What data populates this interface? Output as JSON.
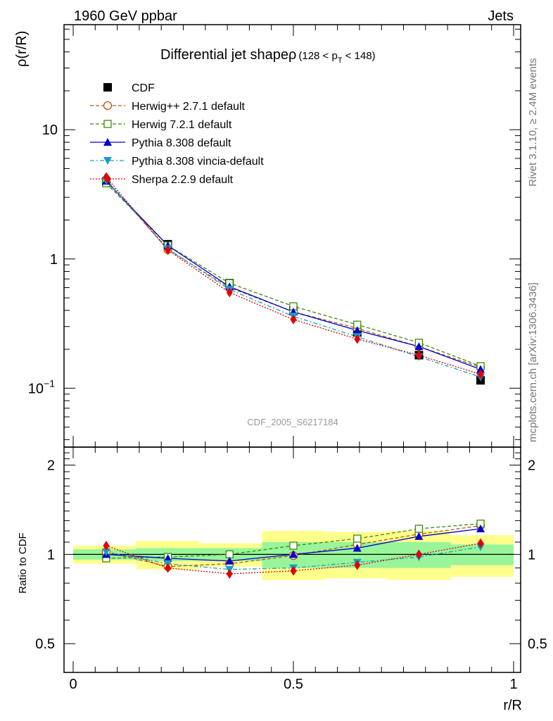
{
  "header": {
    "left": "1960 GeV ppbar",
    "right": "Jets",
    "side_rivet": "Rivet 3.1.10, ≥ 2.4M events",
    "side_mcplots": "mcplots.cern.ch [arXiv:1306.3436]",
    "watermark": "CDF_2005_S6217184"
  },
  "chart_data": [
    {
      "type": "line",
      "scale": "log",
      "title_main": "Differential jet shape",
      "title_rho": "ρ",
      "title_range": {
        "open": "(128 < p",
        "sub": "T",
        "close": " < 148)"
      },
      "ylabel": "ρ(r/R)",
      "xlabel": "r/R",
      "xlim": [
        0,
        1
      ],
      "ylim": [
        0.035,
        65
      ],
      "x_ticks": [
        "0",
        "0.5",
        "1"
      ],
      "y_ticks": [
        {
          "value": 10,
          "label": "10"
        },
        {
          "value": 1,
          "label": "1"
        },
        {
          "value": 0.1,
          "label": "10",
          "sup": "−1"
        }
      ],
      "x": [
        0.075,
        0.215,
        0.355,
        0.5,
        0.645,
        0.785,
        0.925
      ],
      "series": [
        {
          "name": "CDF",
          "color": "#000000",
          "marker": "square",
          "dash": "",
          "values": [
            4.0,
            1.3,
            0.65,
            0.4,
            0.27,
            0.18,
            0.115
          ]
        },
        {
          "name": "Herwig++ 2.7.1 default",
          "color": "#b8560b",
          "marker": "circle-open",
          "dash": "5,3",
          "values": [
            4.1,
            1.18,
            0.6,
            0.39,
            0.29,
            0.21,
            0.145
          ]
        },
        {
          "name": "Herwig 7.2.1 default",
          "color": "#3a8a0c",
          "marker": "square-open",
          "dash": "5,3",
          "values": [
            3.85,
            1.27,
            0.65,
            0.43,
            0.31,
            0.225,
            0.148
          ]
        },
        {
          "name": "Pythia 8.308 default",
          "color": "#0000cc",
          "marker": "triangle-up",
          "dash": "",
          "values": [
            4.0,
            1.27,
            0.61,
            0.39,
            0.28,
            0.21,
            0.14
          ]
        },
        {
          "name": "Pythia 8.308 vincia-default",
          "color": "#1a9fc4",
          "marker": "triangle-down",
          "dash": "6,3,2,3",
          "values": [
            4.05,
            1.2,
            0.58,
            0.36,
            0.25,
            0.175,
            0.122
          ]
        },
        {
          "name": "Sherpa 2.2.9 default",
          "color": "#e00000",
          "marker": "diamond",
          "dash": "2,2",
          "values": [
            4.3,
            1.17,
            0.55,
            0.34,
            0.24,
            0.18,
            0.128
          ]
        }
      ]
    },
    {
      "type": "line",
      "scale": "log",
      "ylabel": "Ratio to CDF",
      "xlabel": "r/R",
      "xlim": [
        0,
        1
      ],
      "ylim": [
        0.4,
        2.3
      ],
      "y_ticks": [
        {
          "value": 2,
          "label": "2"
        },
        {
          "value": 1,
          "label": "1"
        },
        {
          "value": 0.5,
          "label": "0.5"
        }
      ],
      "x_ticks": [
        "0",
        "0.5",
        "1"
      ],
      "bands": [
        {
          "x0": 0.0,
          "x1": 0.143,
          "y1_lo": 0.96,
          "y1_hi": 1.04,
          "y2_lo": 0.93,
          "y2_hi": 1.07
        },
        {
          "x0": 0.143,
          "x1": 0.286,
          "y1_lo": 0.95,
          "y1_hi": 1.05,
          "y2_lo": 0.89,
          "y2_hi": 1.11
        },
        {
          "x0": 0.286,
          "x1": 0.429,
          "y1_lo": 0.95,
          "y1_hi": 1.05,
          "y2_lo": 0.91,
          "y2_hi": 1.09
        },
        {
          "x0": 0.429,
          "x1": 0.571,
          "y1_lo": 0.9,
          "y1_hi": 1.1,
          "y2_lo": 0.82,
          "y2_hi": 1.2
        },
        {
          "x0": 0.571,
          "x1": 0.714,
          "y1_lo": 0.9,
          "y1_hi": 1.1,
          "y2_lo": 0.83,
          "y2_hi": 1.19
        },
        {
          "x0": 0.714,
          "x1": 0.857,
          "y1_lo": 0.9,
          "y1_hi": 1.1,
          "y2_lo": 0.82,
          "y2_hi": 1.2
        },
        {
          "x0": 0.857,
          "x1": 1.0,
          "y1_lo": 0.92,
          "y1_hi": 1.08,
          "y2_lo": 0.84,
          "y2_hi": 1.16
        }
      ],
      "band_colors": {
        "inner": "#99f599",
        "outer": "#ffff8c"
      },
      "series": [
        {
          "name": "Herwig++ 2.7.1 default",
          "values": [
            1.02,
            0.91,
            0.93,
            0.99,
            1.08,
            1.17,
            1.25
          ]
        },
        {
          "name": "Herwig 7.2.1 default",
          "values": [
            0.97,
            0.98,
            1.0,
            1.07,
            1.13,
            1.22,
            1.27
          ]
        },
        {
          "name": "Pythia 8.308 default",
          "values": [
            1.0,
            0.97,
            0.95,
            1.0,
            1.05,
            1.15,
            1.22
          ]
        },
        {
          "name": "Pythia 8.308 vincia-default",
          "values": [
            1.02,
            0.93,
            0.89,
            0.9,
            0.94,
            0.98,
            1.06
          ]
        },
        {
          "name": "Sherpa 2.2.9 default",
          "values": [
            1.07,
            0.9,
            0.86,
            0.88,
            0.92,
            1.0,
            1.09
          ]
        }
      ]
    }
  ]
}
